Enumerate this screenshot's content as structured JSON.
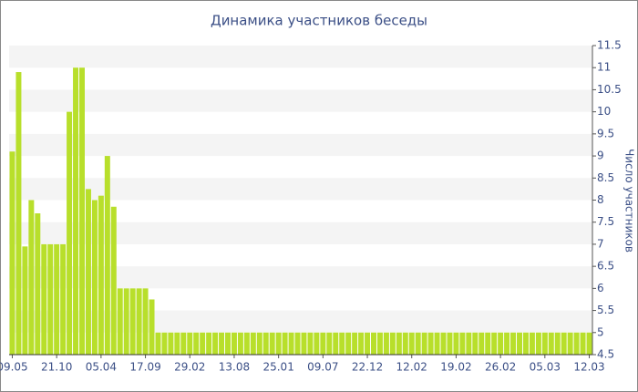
{
  "chart_data": {
    "type": "bar",
    "title": "Динамика участников беседы",
    "y_label": "Число участников",
    "categories": [
      "09.05",
      null,
      null,
      null,
      null,
      null,
      null,
      "21.10",
      null,
      null,
      null,
      null,
      null,
      null,
      "05.04",
      null,
      null,
      null,
      null,
      null,
      null,
      "17.09",
      null,
      null,
      null,
      null,
      null,
      null,
      "29.02",
      null,
      null,
      null,
      null,
      null,
      null,
      "13.08",
      null,
      null,
      null,
      null,
      null,
      null,
      "25.01",
      null,
      null,
      null,
      null,
      null,
      null,
      "09.07",
      null,
      null,
      null,
      null,
      null,
      null,
      "22.12",
      null,
      null,
      null,
      null,
      null,
      null,
      "12.02",
      null,
      null,
      null,
      null,
      null,
      null,
      "19.02",
      null,
      null,
      null,
      null,
      null,
      null,
      "26.02",
      null,
      null,
      null,
      null,
      null,
      null,
      "05.03",
      null,
      null,
      null,
      null,
      null,
      null,
      "12.03"
    ],
    "values": [
      9.1,
      10.9,
      6.95,
      8,
      7.7,
      7,
      7,
      7,
      7,
      10,
      11,
      11,
      8.25,
      8,
      8.1,
      9,
      7.85,
      6,
      6,
      6,
      6,
      6,
      5.75,
      5,
      5,
      5,
      5,
      5,
      5,
      5,
      5,
      5,
      5,
      5,
      5,
      5,
      5,
      5,
      5,
      5,
      5,
      5,
      5,
      5,
      5,
      5,
      5,
      5,
      5,
      5,
      5,
      5,
      5,
      5,
      5,
      5,
      5,
      5,
      5,
      5,
      5,
      5,
      5,
      5,
      5,
      5,
      5,
      5,
      5,
      5,
      5,
      5,
      5,
      5,
      5,
      5,
      5,
      5,
      5,
      5,
      5,
      5,
      5,
      5,
      5,
      5,
      5,
      5,
      5,
      5,
      5,
      5
    ],
    "color": "#b8df2b",
    "ylim": [
      4.5,
      11.5
    ],
    "yticks": [
      4.5,
      5,
      5.5,
      6,
      6.5,
      7,
      7.5,
      8,
      8.5,
      9,
      9.5,
      10,
      10.5,
      11,
      11.5
    ],
    "grid": true
  }
}
